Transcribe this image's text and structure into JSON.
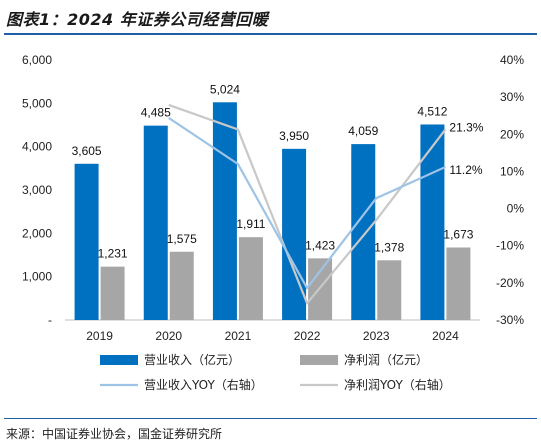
{
  "title": "图表1：2024 年证券公司经营回暖",
  "source": "来源：中国证券业协会，国金证券研究所",
  "colors": {
    "revenue": "#0070c0",
    "profit": "#a6a6a6",
    "revenue_yoy": "#9dc3e6",
    "profit_yoy": "#c8c8c8",
    "rule": "#1f5fa8"
  },
  "chart_data": {
    "type": "bar",
    "categories": [
      "2019",
      "2020",
      "2021",
      "2022",
      "2023",
      "2024"
    ],
    "series": [
      {
        "name": "营业收入（亿元）",
        "kind": "bar",
        "axis": "left",
        "values": [
          3605,
          4485,
          5024,
          3950,
          4059,
          4512
        ],
        "labels": [
          "3,605",
          "4,485",
          "5,024",
          "3,950",
          "4,059",
          "4,512"
        ]
      },
      {
        "name": "净利润（亿元）",
        "kind": "bar",
        "axis": "left",
        "values": [
          1231,
          1575,
          1911,
          1423,
          1378,
          1673
        ],
        "labels": [
          "1,231",
          "1,575",
          "1,911",
          "1,423",
          "1,378",
          "1,673"
        ]
      },
      {
        "name": "营业收入YOY（右轴）",
        "kind": "line",
        "axis": "right",
        "values": [
          null,
          24.4,
          12.0,
          -21.4,
          2.8,
          11.2
        ],
        "end_label": "11.2%"
      },
      {
        "name": "净利润YOY（右轴）",
        "kind": "line",
        "axis": "right",
        "values": [
          null,
          27.9,
          21.3,
          -25.5,
          -3.1,
          21.3
        ],
        "end_label": "21.3%"
      }
    ],
    "left_axis": {
      "ylim": [
        0,
        6000
      ],
      "ticks": [
        "-",
        "1,000",
        "2,000",
        "3,000",
        "4,000",
        "5,000",
        "6,000"
      ]
    },
    "right_axis": {
      "ylim": [
        -30,
        40
      ],
      "ticks": [
        "-30%",
        "-20%",
        "-10%",
        "0%",
        "10%",
        "20%",
        "30%",
        "40%"
      ]
    },
    "legend_position": "bottom",
    "grid": false
  }
}
